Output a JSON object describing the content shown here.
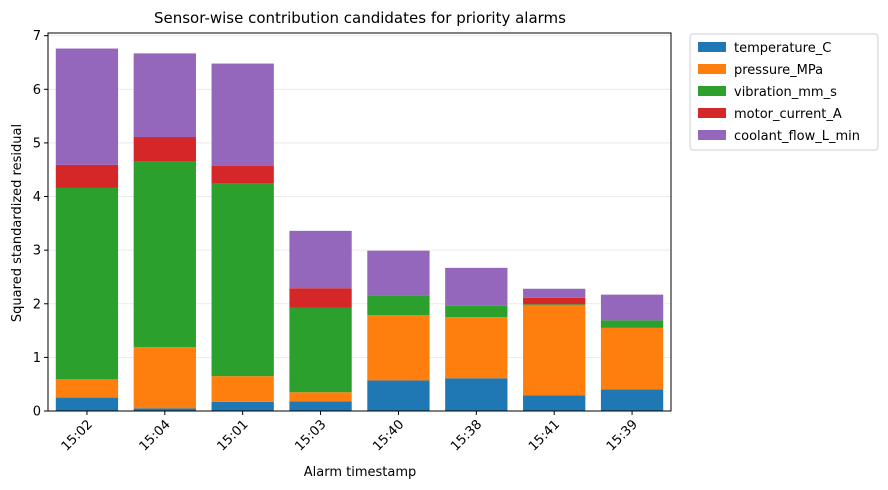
{
  "chart_data": {
    "type": "bar",
    "stacked": true,
    "title": "Sensor-wise contribution candidates for priority alarms",
    "xlabel": "Alarm timestamp",
    "ylabel": "Squared standardized residual",
    "categories": [
      "15:02",
      "15:04",
      "15:01",
      "15:03",
      "15:40",
      "15:38",
      "15:41",
      "15:39"
    ],
    "ylim": [
      0,
      7.05
    ],
    "yticks": [
      0,
      1,
      2,
      3,
      4,
      5,
      6,
      7
    ],
    "grid": "y",
    "legend_position": "outside-top-right",
    "series": [
      {
        "name": "temperature_C",
        "color": "#1f77b4",
        "values": [
          0.25,
          0.05,
          0.17,
          0.18,
          0.57,
          0.61,
          0.29,
          0.4
        ]
      },
      {
        "name": "pressure_MPa",
        "color": "#ff7f0e",
        "values": [
          0.34,
          1.14,
          0.48,
          0.17,
          1.22,
          1.14,
          1.68,
          1.15
        ]
      },
      {
        "name": "vibration_mm_s",
        "color": "#2ca02c",
        "values": [
          3.57,
          3.46,
          3.59,
          1.58,
          0.37,
          0.21,
          0.02,
          0.14
        ]
      },
      {
        "name": "motor_current_A",
        "color": "#d62728",
        "values": [
          0.43,
          0.46,
          0.33,
          0.36,
          0.0,
          0.0,
          0.12,
          0.0
        ]
      },
      {
        "name": "coolant_flow_L_min",
        "color": "#9467bd",
        "values": [
          2.17,
          1.56,
          1.91,
          1.07,
          0.83,
          0.71,
          0.17,
          0.48
        ]
      }
    ]
  }
}
